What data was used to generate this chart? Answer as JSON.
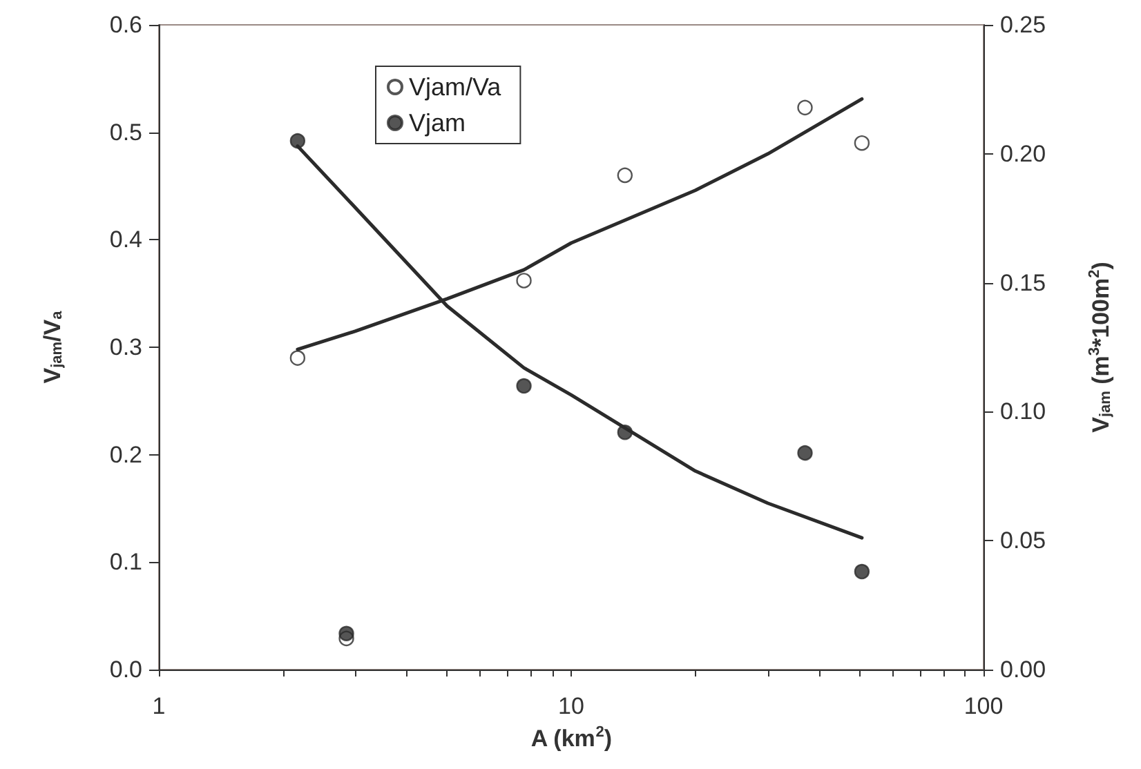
{
  "chart_data": {
    "type": "scatter",
    "xlabel": "A (km$^{2}$)",
    "ylabel": "V$_{jam}$/V$_{a}$",
    "y2label": "V$_{jam}$ (m$^{3}$*100m$^{2}$)",
    "log": "x",
    "xlim": [
      1,
      100
    ],
    "xticks": [
      1,
      {
        "value": 2,
        "label": null
      },
      {
        "value": 3,
        "label": null
      },
      {
        "value": 4,
        "label": null
      },
      {
        "value": 5,
        "label": null
      },
      {
        "value": 6,
        "label": null
      },
      {
        "value": 7,
        "label": null
      },
      {
        "value": 8,
        "label": null
      },
      {
        "value": 9,
        "label": null
      },
      10,
      {
        "value": 20,
        "label": null
      },
      {
        "value": 30,
        "label": null
      },
      {
        "value": 40,
        "label": null
      },
      {
        "value": 50,
        "label": null
      },
      {
        "value": 60,
        "label": null
      },
      {
        "value": 70,
        "label": null
      },
      {
        "value": 80,
        "label": null
      },
      {
        "value": 90,
        "label": null
      },
      100
    ],
    "ylim": [
      0,
      0.6
    ],
    "yticks": [
      {
        "value": 0,
        "label": "0.0"
      },
      0.1,
      0.2,
      0.3,
      0.4,
      0.5,
      0.6
    ],
    "y2lim": [
      0,
      0.25
    ],
    "y2ticks": [
      {
        "value": 0,
        "label": "0.00"
      },
      0.05,
      {
        "value": 0.1,
        "label": "0.10"
      },
      0.15,
      {
        "value": 0.2,
        "label": "0.20"
      },
      0.25
    ],
    "grid": false,
    "legend": "top left",
    "marker": "circle",
    "series": [
      {
        "name": "Vjam/Va",
        "color": "#ffffff",
        "x": [
          2.17,
          2.85,
          7.68,
          13.5,
          36.9,
          50.7
        ],
        "values": [
          0.29,
          0.029,
          0.362,
          0.46,
          0.523,
          0.49
        ]
      },
      {
        "name": "Vjam",
        "axis": "y2",
        "color": "#2b2b2b",
        "x": [
          2.17,
          2.85,
          7.68,
          13.5,
          36.9,
          50.7
        ],
        "values": [
          0.205,
          0.014,
          0.11,
          0.092,
          0.084,
          0.038
        ]
      },
      {
        "type": "line",
        "color": "#2b2b2b",
        "marker": "none",
        "x": [
          2.17,
          3,
          5,
          7.68,
          10,
          20,
          30,
          50.7
        ],
        "values": [
          0.298,
          0.315,
          0.345,
          0.372,
          0.397,
          0.446,
          0.48,
          0.531
        ]
      },
      {
        "type": "line",
        "axis": "y2",
        "color": "#2b2b2b",
        "marker": "none",
        "x": [
          2.17,
          3,
          5,
          7.68,
          10,
          20,
          30,
          50.7
        ],
        "values": [
          0.203,
          0.179,
          0.141,
          0.117,
          0.1065,
          0.077,
          0.0645,
          0.0511
        ]
      }
    ]
  }
}
